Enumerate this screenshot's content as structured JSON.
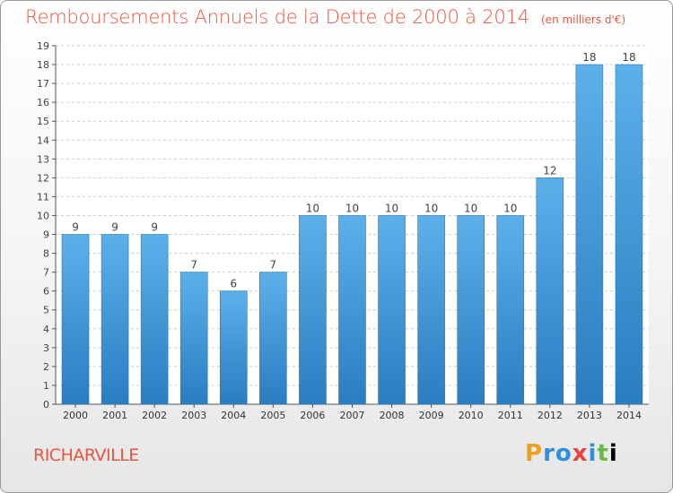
{
  "header": {
    "title": "Remboursements Annuels de la Dette de 2000 à 2014",
    "unit": "(en milliers d'€)"
  },
  "footer": {
    "place": "RICHARVILLE",
    "logo": "Proxiti"
  },
  "colors": {
    "title": "#e8573f",
    "bar_top": "#5cb0ea",
    "bar_bottom": "#2a7dc0",
    "axis": "#555555",
    "grid": "#cccccc"
  },
  "chart_data": {
    "type": "bar",
    "categories": [
      "2000",
      "2001",
      "2002",
      "2003",
      "2004",
      "2005",
      "2006",
      "2007",
      "2008",
      "2009",
      "2010",
      "2011",
      "2012",
      "2013",
      "2014"
    ],
    "values": [
      9,
      9,
      9,
      7,
      6,
      7,
      10,
      10,
      10,
      10,
      10,
      10,
      12,
      18,
      18
    ],
    "ylim": [
      0,
      19
    ],
    "yticks": [
      0,
      1,
      2,
      3,
      4,
      5,
      6,
      7,
      8,
      9,
      10,
      11,
      12,
      13,
      14,
      15,
      16,
      17,
      18,
      19
    ],
    "grid": true,
    "data_labels": true
  }
}
